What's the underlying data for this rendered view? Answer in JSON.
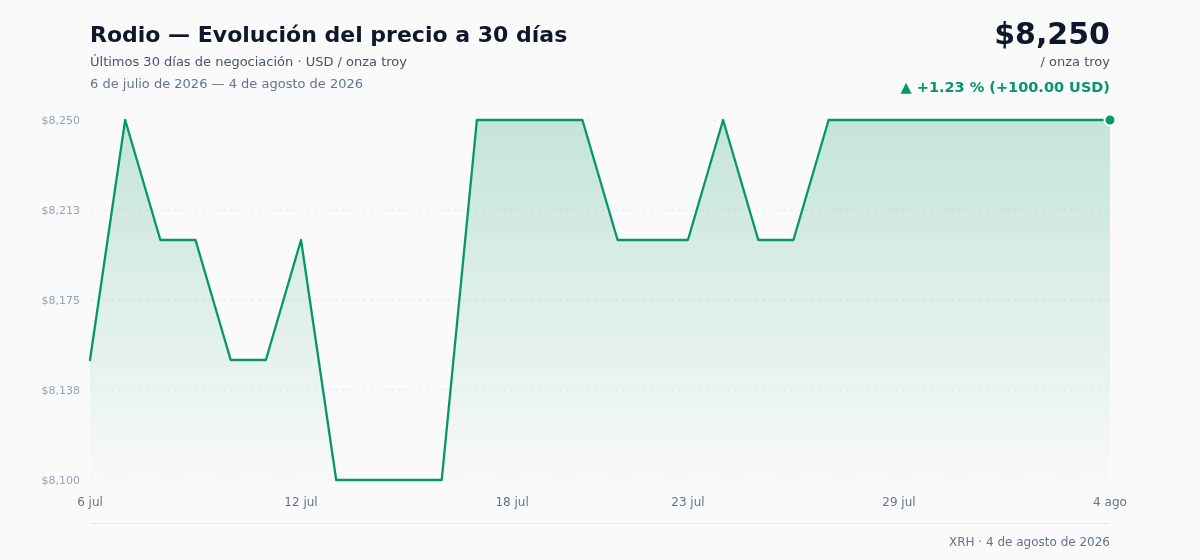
{
  "chart_data": {
    "type": "area",
    "title": "Rodio — Evolución del precio a 30 días",
    "subtitle": "Últimos 30 días de negociación · USD / onza troy",
    "annotations": [
      "$8,250",
      "/ onza troy",
      "▲ +1.23 % (+100.00 USD)",
      "6 de julio de 2026 — 4 de agosto de 2026",
      "XRH · 4 de agosto de 2026"
    ],
    "x": [
      "2026-07-06",
      "2026-07-07",
      "2026-07-08",
      "2026-07-09",
      "2026-07-10",
      "2026-07-11",
      "2026-07-12",
      "2026-07-13",
      "2026-07-14",
      "2026-07-15",
      "2026-07-16",
      "2026-07-17",
      "2026-07-18",
      "2026-07-19",
      "2026-07-20",
      "2026-07-21",
      "2026-07-22",
      "2026-07-23",
      "2026-07-24",
      "2026-07-25",
      "2026-07-26",
      "2026-07-27",
      "2026-07-28",
      "2026-07-29",
      "2026-07-30",
      "2026-07-31",
      "2026-08-01",
      "2026-08-02",
      "2026-08-03",
      "2026-08-04"
    ],
    "series": [
      {
        "color": "#059669",
        "values": [
          8150,
          8250,
          8200,
          8200,
          8150,
          8150,
          8200,
          8100,
          8100,
          8100,
          8100,
          8250,
          8250,
          8250,
          8250,
          8200,
          8200,
          8200,
          8250,
          8200,
          8200,
          8250,
          8250,
          8250,
          8250,
          8250,
          8250,
          8250,
          8250,
          8250
        ]
      },
      {
        "type": "scatter",
        "marker": "circle",
        "color": "#059669",
        "x": [
          "2026-08-04"
        ],
        "values": [
          8250
        ]
      }
    ],
    "xlim": [
      "2026-07-06",
      "2026-08-04"
    ],
    "xticks": [
      {
        "value": "2026-07-06",
        "label": "6 jul"
      },
      {
        "value": "2026-07-12",
        "label": "12 jul"
      },
      {
        "value": "2026-07-18",
        "label": "18 jul"
      },
      {
        "value": "2026-07-23",
        "label": "23 jul"
      },
      {
        "value": "2026-07-29",
        "label": "29 jul"
      },
      {
        "value": "2026-08-04",
        "label": "4 ago"
      }
    ],
    "ylim": [
      8100,
      8250
    ],
    "yticks": [
      {
        "value": 8100,
        "label": "$8,100"
      },
      {
        "value": 8137.5,
        "label": "$8,138"
      },
      {
        "value": 8175,
        "label": "$8,175"
      },
      {
        "value": 8212.5,
        "label": "$8,213"
      },
      {
        "value": 8250,
        "label": "$8,250"
      }
    ],
    "grid": "y"
  }
}
